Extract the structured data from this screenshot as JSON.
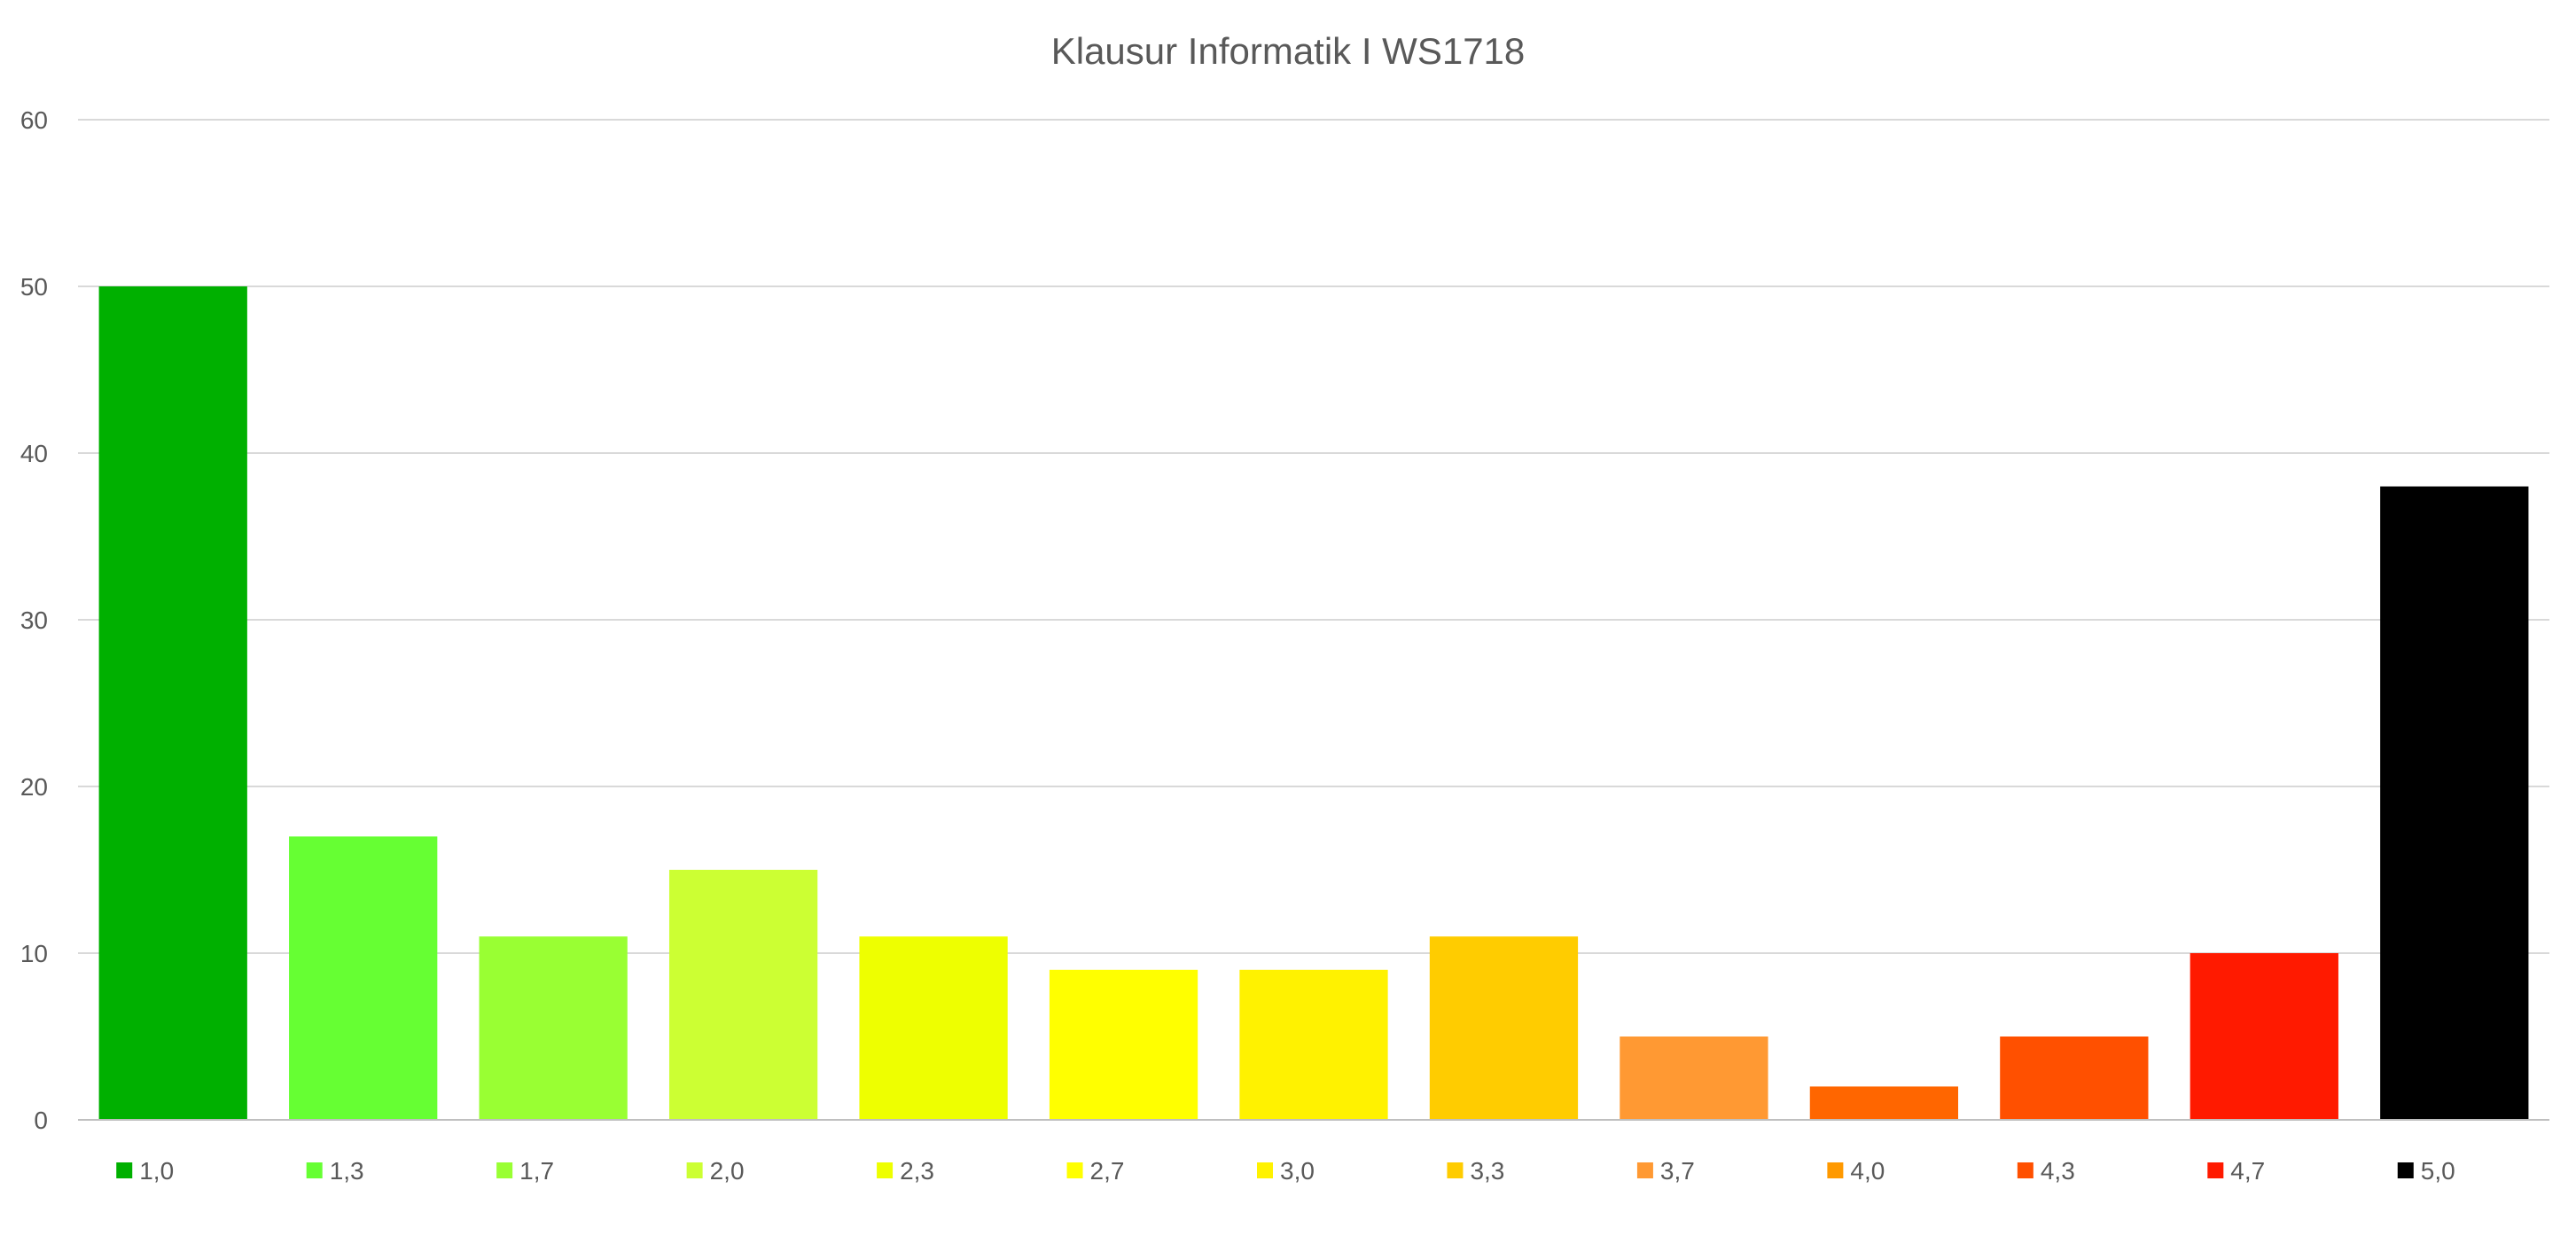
{
  "chart_data": {
    "type": "bar",
    "title": "Klausur Informatik I WS1718",
    "xlabel": "",
    "ylabel": "",
    "ylim": [
      0,
      60
    ],
    "yticks": [
      0,
      10,
      20,
      30,
      40,
      50,
      60
    ],
    "grid": true,
    "legend_position": "bottom",
    "categories": [
      "1,0",
      "1,3",
      "1,7",
      "2,0",
      "2,3",
      "2,7",
      "3,0",
      "3,3",
      "3,7",
      "4,0",
      "4,3",
      "4,7",
      "5,0"
    ],
    "values": [
      50,
      17,
      11,
      15,
      11,
      9,
      9,
      11,
      5,
      2,
      5,
      10,
      38
    ],
    "colors": [
      "#00b000",
      "#66ff33",
      "#99ff33",
      "#ccff33",
      "#eeff00",
      "#ffff00",
      "#fff200",
      "#ffcc00",
      "#ff9933",
      "#ff6600",
      "#ff5000",
      "#ff1a00",
      "#000000"
    ],
    "legend": [
      "1,0",
      "1,3",
      "1,7",
      "2,0",
      "2,3",
      "2,7",
      "3,0",
      "3,3",
      "3,7",
      "4,0",
      "4,3",
      "4,7",
      "5,0"
    ],
    "legend_colors": [
      "#00b000",
      "#66ff33",
      "#99ff33",
      "#ccff33",
      "#eeff00",
      "#ffff00",
      "#fff200",
      "#ffcc00",
      "#ff9933",
      "#ff9900",
      "#ff5000",
      "#ff1a00",
      "#000000"
    ]
  }
}
